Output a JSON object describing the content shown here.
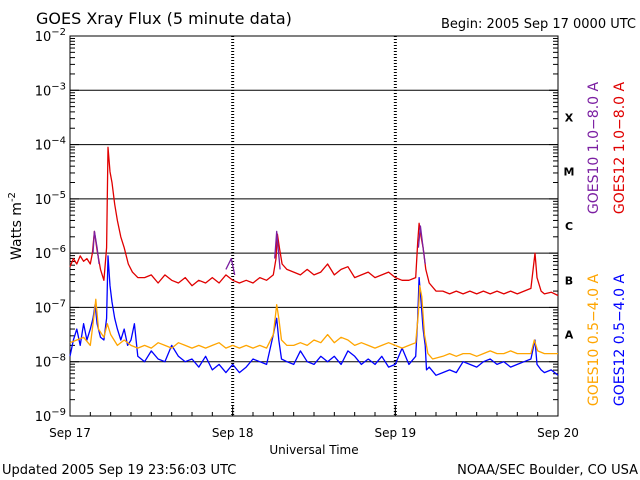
{
  "header": {
    "title": "GOES Xray Flux (5 minute data)",
    "begin": "Begin:  2005 Sep 17 0000 UTC"
  },
  "footer": {
    "updated": "Updated 2005 Sep 19 23:56:03 UTC",
    "credit": "NOAA/SEC Boulder, CO USA"
  },
  "chart_data": {
    "type": "line",
    "title": "GOES Xray Flux (5 minute data)",
    "xlabel": "Universal Time",
    "ylabel": "Watts m⁻²",
    "ylabel_base": "Watts m",
    "ylabel_exp": "-2",
    "yscale": "log",
    "ylim": [
      1e-09,
      0.01
    ],
    "xlim": [
      0,
      72
    ],
    "x_unit": "hours since 2005 Sep 17 00:00 UTC",
    "x_ticks": [
      {
        "x": 0,
        "label": "Sep 17"
      },
      {
        "x": 24,
        "label": "Sep 18"
      },
      {
        "x": 48,
        "label": "Sep 19"
      },
      {
        "x": 72,
        "label": "Sep 20"
      }
    ],
    "y_ticks": [
      {
        "exp": -2,
        "base": "10",
        "sup": "−2"
      },
      {
        "exp": -3,
        "base": "10",
        "sup": "−3"
      },
      {
        "exp": -4,
        "base": "10",
        "sup": "−4"
      },
      {
        "exp": -5,
        "base": "10",
        "sup": "−5"
      },
      {
        "exp": -6,
        "base": "10",
        "sup": "−6"
      },
      {
        "exp": -7,
        "base": "10",
        "sup": "−7"
      },
      {
        "exp": -8,
        "base": "10",
        "sup": "−8"
      },
      {
        "exp": -9,
        "base": "10",
        "sup": "−9"
      }
    ],
    "flare_classes": [
      {
        "label": "X",
        "exp": -3.5
      },
      {
        "label": "M",
        "exp": -4.5
      },
      {
        "label": "C",
        "exp": -5.5
      },
      {
        "label": "B",
        "exp": -6.5
      },
      {
        "label": "A",
        "exp": -7.5
      }
    ],
    "legend": [
      {
        "name": "GOES10 1.0−8.0 A",
        "color": "#7b1fa2"
      },
      {
        "name": "GOES12 1.0−8.0 A",
        "color": "#e00000"
      },
      {
        "name": "GOES10 0.5−4.0 A",
        "color": "#ffa500"
      },
      {
        "name": "GOES12 0.5−4.0 A",
        "color": "#0000ff"
      }
    ],
    "grid": "horizontal lines at each decade; dashed vertical lines at day boundaries",
    "series": [
      {
        "name": "GOES10 1.0−8.0 A",
        "color": "#7b1fa2",
        "segments": [
          [
            [
              3.4,
              -6.0
            ],
            [
              3.6,
              -5.6
            ],
            [
              4.0,
              -5.9
            ],
            [
              4.3,
              -6.2
            ]
          ],
          [
            [
              23.0,
              -6.3
            ],
            [
              23.8,
              -6.1
            ],
            [
              24.3,
              -6.4
            ]
          ],
          [
            [
              30.2,
              -6.1
            ],
            [
              30.5,
              -5.6
            ],
            [
              30.7,
              -5.9
            ],
            [
              31.0,
              -6.3
            ]
          ],
          [
            [
              51.4,
              -5.9
            ],
            [
              51.7,
              -5.5
            ],
            [
              52.0,
              -5.8
            ],
            [
              52.4,
              -6.2
            ]
          ]
        ]
      },
      {
        "name": "GOES12 1.0−8.0 A",
        "color": "#e00000",
        "points": [
          [
            0,
            -6.25
          ],
          [
            0.5,
            -6.1
          ],
          [
            1.0,
            -6.2
          ],
          [
            1.5,
            -6.05
          ],
          [
            2.0,
            -6.15
          ],
          [
            2.5,
            -6.1
          ],
          [
            3.0,
            -6.2
          ],
          [
            3.3,
            -6.0
          ],
          [
            3.6,
            -5.6
          ],
          [
            4.0,
            -5.95
          ],
          [
            4.5,
            -6.3
          ],
          [
            5.0,
            -6.5
          ],
          [
            5.4,
            -5.9
          ],
          [
            5.6,
            -4.05
          ],
          [
            5.9,
            -4.5
          ],
          [
            6.2,
            -4.7
          ],
          [
            6.6,
            -5.1
          ],
          [
            7.0,
            -5.4
          ],
          [
            7.5,
            -5.7
          ],
          [
            8.0,
            -5.9
          ],
          [
            8.6,
            -6.2
          ],
          [
            9.2,
            -6.35
          ],
          [
            10,
            -6.45
          ],
          [
            11,
            -6.45
          ],
          [
            12,
            -6.4
          ],
          [
            13,
            -6.55
          ],
          [
            14,
            -6.4
          ],
          [
            15,
            -6.5
          ],
          [
            16,
            -6.55
          ],
          [
            17,
            -6.45
          ],
          [
            18,
            -6.6
          ],
          [
            19,
            -6.5
          ],
          [
            20,
            -6.55
          ],
          [
            21,
            -6.45
          ],
          [
            22,
            -6.55
          ],
          [
            23,
            -6.4
          ],
          [
            24,
            -6.5
          ],
          [
            25,
            -6.55
          ],
          [
            26,
            -6.5
          ],
          [
            27,
            -6.55
          ],
          [
            28,
            -6.45
          ],
          [
            29,
            -6.5
          ],
          [
            30,
            -6.4
          ],
          [
            30.4,
            -6.1
          ],
          [
            30.6,
            -5.65
          ],
          [
            30.9,
            -5.9
          ],
          [
            31.3,
            -6.2
          ],
          [
            32,
            -6.3
          ],
          [
            33,
            -6.35
          ],
          [
            34,
            -6.4
          ],
          [
            35,
            -6.3
          ],
          [
            36,
            -6.4
          ],
          [
            37,
            -6.35
          ],
          [
            38,
            -6.2
          ],
          [
            39,
            -6.4
          ],
          [
            40,
            -6.3
          ],
          [
            41,
            -6.25
          ],
          [
            42,
            -6.45
          ],
          [
            43,
            -6.4
          ],
          [
            44,
            -6.35
          ],
          [
            45,
            -6.45
          ],
          [
            46,
            -6.4
          ],
          [
            47,
            -6.35
          ],
          [
            48,
            -6.45
          ],
          [
            49,
            -6.5
          ],
          [
            50,
            -6.5
          ],
          [
            51,
            -6.45
          ],
          [
            51.3,
            -5.8
          ],
          [
            51.5,
            -5.45
          ],
          [
            51.8,
            -5.7
          ],
          [
            52.1,
            -5.9
          ],
          [
            52.5,
            -6.3
          ],
          [
            53,
            -6.55
          ],
          [
            54,
            -6.7
          ],
          [
            55,
            -6.7
          ],
          [
            56,
            -6.75
          ],
          [
            57,
            -6.7
          ],
          [
            58,
            -6.75
          ],
          [
            59,
            -6.7
          ],
          [
            60,
            -6.75
          ],
          [
            61,
            -6.7
          ],
          [
            62,
            -6.75
          ],
          [
            63,
            -6.7
          ],
          [
            64,
            -6.75
          ],
          [
            65,
            -6.7
          ],
          [
            66,
            -6.75
          ],
          [
            67,
            -6.7
          ],
          [
            68,
            -6.65
          ],
          [
            68.6,
            -6.0
          ],
          [
            68.9,
            -6.45
          ],
          [
            69.5,
            -6.7
          ],
          [
            70,
            -6.75
          ],
          [
            71,
            -6.72
          ],
          [
            72,
            -6.78
          ]
        ]
      },
      {
        "name": "GOES10 0.5−4.0 A",
        "color": "#ffa500",
        "points": [
          [
            0,
            -7.65
          ],
          [
            1,
            -7.6
          ],
          [
            2,
            -7.55
          ],
          [
            3.0,
            -7.7
          ],
          [
            3.5,
            -7.2
          ],
          [
            3.8,
            -6.85
          ],
          [
            4.2,
            -7.4
          ],
          [
            5.0,
            -7.55
          ],
          [
            5.5,
            -7.3
          ],
          [
            6.0,
            -7.5
          ],
          [
            7.0,
            -7.7
          ],
          [
            8.0,
            -7.6
          ],
          [
            9.0,
            -7.7
          ],
          [
            10,
            -7.75
          ],
          [
            11,
            -7.7
          ],
          [
            12,
            -7.75
          ],
          [
            13,
            -7.65
          ],
          [
            14,
            -7.7
          ],
          [
            15,
            -7.75
          ],
          [
            16,
            -7.65
          ],
          [
            17,
            -7.7
          ],
          [
            18,
            -7.75
          ],
          [
            19,
            -7.7
          ],
          [
            20,
            -7.75
          ],
          [
            21,
            -7.7
          ],
          [
            22,
            -7.65
          ],
          [
            23,
            -7.75
          ],
          [
            24,
            -7.7
          ],
          [
            25,
            -7.75
          ],
          [
            26,
            -7.7
          ],
          [
            27,
            -7.75
          ],
          [
            28,
            -7.7
          ],
          [
            29,
            -7.75
          ],
          [
            30,
            -7.5
          ],
          [
            30.5,
            -6.95
          ],
          [
            30.8,
            -7.2
          ],
          [
            31.2,
            -7.6
          ],
          [
            32,
            -7.7
          ],
          [
            33,
            -7.7
          ],
          [
            34,
            -7.65
          ],
          [
            35,
            -7.7
          ],
          [
            36,
            -7.6
          ],
          [
            37,
            -7.65
          ],
          [
            38,
            -7.5
          ],
          [
            39,
            -7.65
          ],
          [
            40,
            -7.55
          ],
          [
            41,
            -7.6
          ],
          [
            42,
            -7.7
          ],
          [
            43,
            -7.65
          ],
          [
            44,
            -7.7
          ],
          [
            45,
            -7.75
          ],
          [
            46,
            -7.7
          ],
          [
            47,
            -7.65
          ],
          [
            48,
            -7.7
          ],
          [
            49,
            -7.75
          ],
          [
            50,
            -7.7
          ],
          [
            51,
            -7.65
          ],
          [
            51.4,
            -7.1
          ],
          [
            51.6,
            -6.6
          ],
          [
            51.9,
            -6.8
          ],
          [
            52.3,
            -7.5
          ],
          [
            52.8,
            -7.85
          ],
          [
            53.5,
            -7.95
          ],
          [
            55,
            -7.9
          ],
          [
            56,
            -7.85
          ],
          [
            57,
            -7.9
          ],
          [
            58,
            -7.85
          ],
          [
            59,
            -7.85
          ],
          [
            60,
            -7.9
          ],
          [
            61,
            -7.85
          ],
          [
            62,
            -7.8
          ],
          [
            63,
            -7.85
          ],
          [
            64,
            -7.85
          ],
          [
            65,
            -7.8
          ],
          [
            66,
            -7.85
          ],
          [
            67,
            -7.85
          ],
          [
            68,
            -7.85
          ],
          [
            68.5,
            -7.6
          ],
          [
            69,
            -7.8
          ],
          [
            70,
            -7.85
          ],
          [
            71,
            -7.85
          ],
          [
            72,
            -7.85
          ]
        ]
      },
      {
        "name": "GOES12 0.5−4.0 A",
        "color": "#0000ff",
        "points": [
          [
            0,
            -7.9
          ],
          [
            0.5,
            -7.6
          ],
          [
            1,
            -7.4
          ],
          [
            1.5,
            -7.7
          ],
          [
            2,
            -7.3
          ],
          [
            2.5,
            -7.6
          ],
          [
            3.0,
            -7.4
          ],
          [
            3.4,
            -7.2
          ],
          [
            3.7,
            -6.95
          ],
          [
            4.0,
            -7.3
          ],
          [
            4.5,
            -7.55
          ],
          [
            5.0,
            -7.6
          ],
          [
            5.4,
            -7.2
          ],
          [
            5.6,
            -6.05
          ],
          [
            5.9,
            -6.6
          ],
          [
            6.2,
            -6.9
          ],
          [
            6.6,
            -7.2
          ],
          [
            7.0,
            -7.4
          ],
          [
            7.5,
            -7.6
          ],
          [
            8.0,
            -7.4
          ],
          [
            8.5,
            -7.7
          ],
          [
            9.0,
            -7.6
          ],
          [
            9.5,
            -7.3
          ],
          [
            10,
            -7.9
          ],
          [
            11,
            -8.0
          ],
          [
            12,
            -7.8
          ],
          [
            13,
            -7.95
          ],
          [
            14,
            -8.0
          ],
          [
            15,
            -7.7
          ],
          [
            16,
            -7.9
          ],
          [
            17,
            -8.0
          ],
          [
            18,
            -7.95
          ],
          [
            19,
            -8.1
          ],
          [
            20,
            -7.9
          ],
          [
            21,
            -8.15
          ],
          [
            22,
            -8.05
          ],
          [
            23,
            -8.2
          ],
          [
            24,
            -8.05
          ],
          [
            25,
            -8.2
          ],
          [
            26,
            -8.1
          ],
          [
            27,
            -7.95
          ],
          [
            28,
            -8.0
          ],
          [
            29,
            -8.05
          ],
          [
            30,
            -7.5
          ],
          [
            30.5,
            -7.2
          ],
          [
            30.8,
            -7.6
          ],
          [
            31.2,
            -7.95
          ],
          [
            32,
            -8.0
          ],
          [
            33,
            -8.05
          ],
          [
            34,
            -7.8
          ],
          [
            35,
            -8.0
          ],
          [
            36,
            -8.05
          ],
          [
            37,
            -7.9
          ],
          [
            38,
            -8.0
          ],
          [
            39,
            -7.9
          ],
          [
            40,
            -8.05
          ],
          [
            41,
            -7.8
          ],
          [
            42,
            -7.9
          ],
          [
            43,
            -8.05
          ],
          [
            44,
            -7.95
          ],
          [
            45,
            -8.05
          ],
          [
            46,
            -7.9
          ],
          [
            47,
            -8.1
          ],
          [
            48,
            -8.05
          ],
          [
            49,
            -7.75
          ],
          [
            50,
            -8.05
          ],
          [
            51,
            -7.9
          ],
          [
            51.3,
            -7.2
          ],
          [
            51.5,
            -6.45
          ],
          [
            51.8,
            -6.9
          ],
          [
            52.1,
            -7.4
          ],
          [
            52.4,
            -7.7
          ],
          [
            52.6,
            -8.15
          ],
          [
            53,
            -8.1
          ],
          [
            54,
            -8.25
          ],
          [
            55,
            -8.2
          ],
          [
            56,
            -8.15
          ],
          [
            57,
            -8.2
          ],
          [
            58,
            -8.0
          ],
          [
            59,
            -8.05
          ],
          [
            60,
            -8.1
          ],
          [
            61,
            -8.0
          ],
          [
            62,
            -7.95
          ],
          [
            63,
            -8.05
          ],
          [
            64,
            -8.0
          ],
          [
            65,
            -8.1
          ],
          [
            66,
            -8.05
          ],
          [
            67,
            -8.0
          ],
          [
            68,
            -7.95
          ],
          [
            68.6,
            -7.6
          ],
          [
            68.9,
            -8.05
          ],
          [
            69.5,
            -8.15
          ],
          [
            70,
            -8.2
          ],
          [
            71,
            -8.15
          ],
          [
            72,
            -8.25
          ]
        ]
      }
    ]
  }
}
